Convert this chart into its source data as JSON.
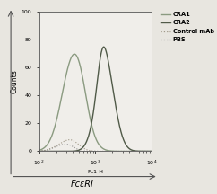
{
  "background_color": "#e8e6e0",
  "plot_bg_color": "#f0eeea",
  "ylabel": "Counts",
  "xlim": [
    100.0,
    10000.0
  ],
  "ylim": [
    0,
    100
  ],
  "yticks": [
    0,
    20,
    40,
    60,
    80,
    100
  ],
  "x_sublabel": "FL1-H",
  "xlabel_main": "FcεRI",
  "cra1_color": "#8a9a80",
  "cra2_color": "#505a48",
  "control_color": "#a09888",
  "pbs_color": "#909090",
  "legend_items": [
    {
      "label": "CRA1",
      "color": "#8a9a80",
      "ls": "solid",
      "lw": 1.0
    },
    {
      "label": "CRA2",
      "color": "#505a48",
      "ls": "solid",
      "lw": 1.0
    },
    {
      "label": "Control mAb",
      "color": "#a09888",
      "ls": "dotted",
      "lw": 0.9
    },
    {
      "label": "PBS",
      "color": "#909090",
      "ls": "dotted",
      "lw": 0.9
    }
  ]
}
